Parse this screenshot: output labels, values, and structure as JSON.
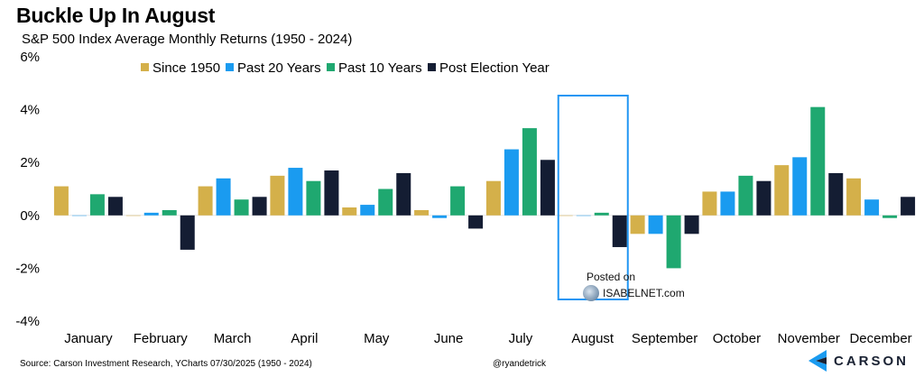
{
  "title": "Buckle Up In August",
  "subtitle": "S&P 500 Index Average Monthly Returns (1950 - 2024)",
  "source": "Source: Carson Investment Research, YCharts 07/30/2025 (1950 - 2024)",
  "handle": "@ryandetrick",
  "brand": "CARSON",
  "watermark": {
    "line1": "Posted on",
    "line2": "ISABELNET.com"
  },
  "colors": {
    "since_1950": "#d4b04a",
    "past_20": "#1a9bf0",
    "past_10": "#1fa870",
    "post_election": "#141d33",
    "highlight_box": "#2196f3"
  },
  "chart_data": {
    "type": "bar",
    "categories": [
      "January",
      "February",
      "March",
      "April",
      "May",
      "June",
      "July",
      "August",
      "September",
      "October",
      "November",
      "December"
    ],
    "series": [
      {
        "name": "Since 1950",
        "values": [
          1.1,
          0.0,
          1.1,
          1.5,
          0.3,
          0.2,
          1.3,
          0.0,
          -0.7,
          0.9,
          1.9,
          1.4
        ]
      },
      {
        "name": "Past 20 Years",
        "values": [
          0.0,
          0.1,
          1.4,
          1.8,
          0.4,
          -0.1,
          2.5,
          0.0,
          -0.7,
          0.9,
          2.2,
          0.6
        ]
      },
      {
        "name": "Past 10 Years",
        "values": [
          0.8,
          0.2,
          0.6,
          1.3,
          1.0,
          1.1,
          3.3,
          0.1,
          -2.0,
          1.5,
          4.1,
          -0.1
        ]
      },
      {
        "name": "Post Election Year",
        "values": [
          0.7,
          -1.3,
          0.7,
          1.7,
          1.6,
          -0.5,
          2.1,
          -1.2,
          -0.7,
          1.3,
          1.6,
          0.7
        ]
      }
    ],
    "yticks": [
      "6%",
      "4%",
      "2%",
      "0%",
      "-2%",
      "-4%"
    ],
    "ylim": [
      -4,
      6
    ],
    "legend_position": "top",
    "highlight_category": "August",
    "grid": false
  }
}
